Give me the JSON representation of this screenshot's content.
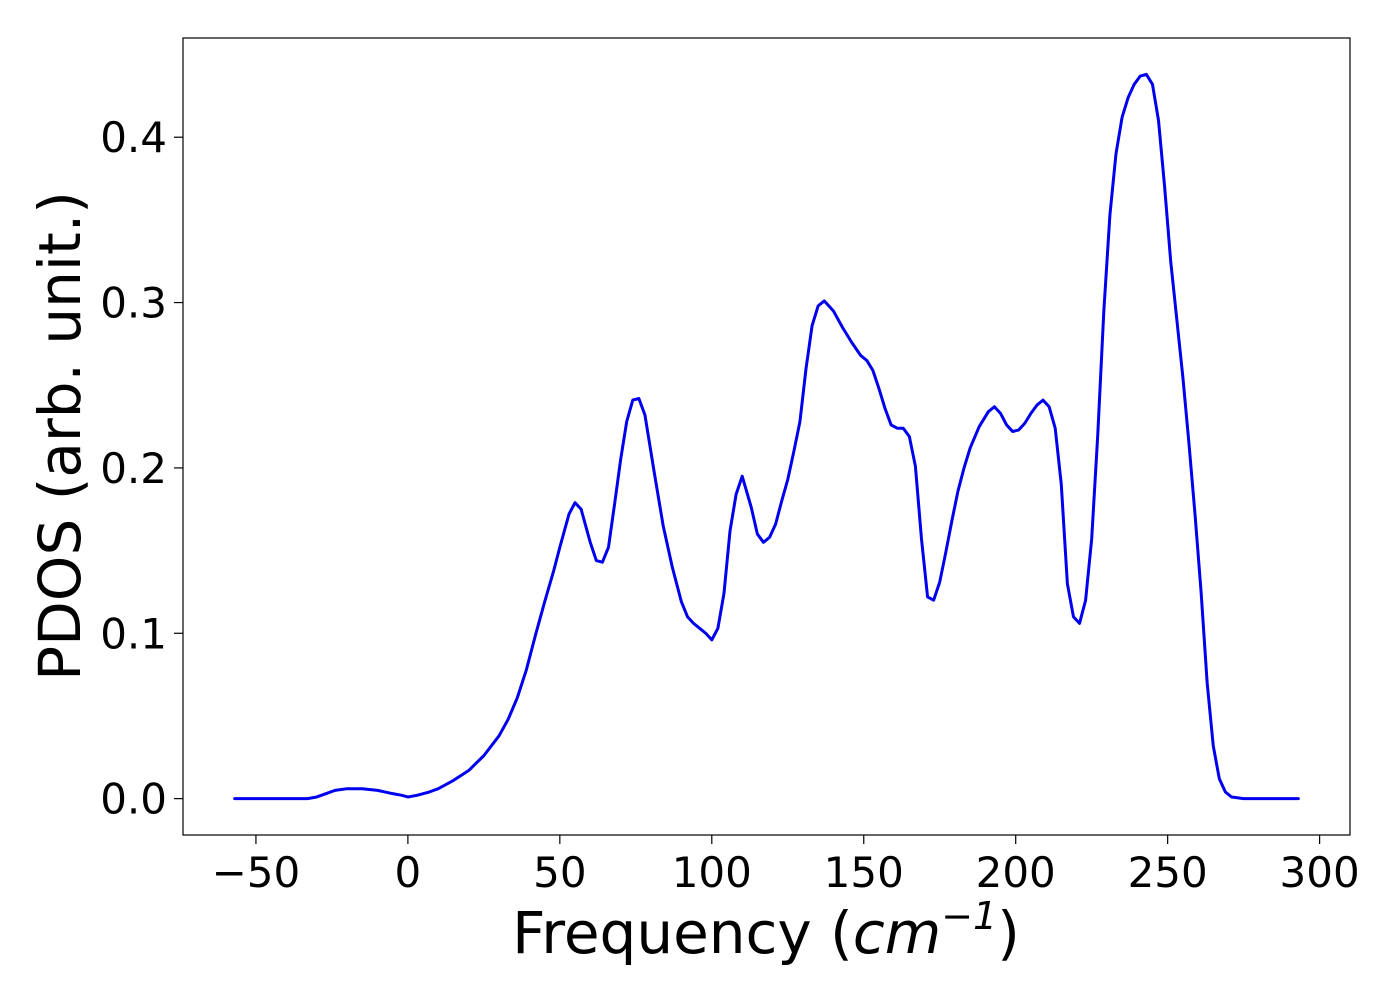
{
  "chart_data": {
    "type": "line",
    "title": "",
    "xlabel": "Frequency",
    "xlabel_unit_base": "cm",
    "xlabel_unit_exp": "−1",
    "ylabel": "PDOS (arb. unit.)",
    "xlim": [
      -74,
      310
    ],
    "ylim": [
      -0.022,
      0.46
    ],
    "x_ticks": [
      -50,
      0,
      50,
      100,
      150,
      200,
      250,
      300
    ],
    "x_tick_labels": [
      "−50",
      "0",
      "50",
      "100",
      "150",
      "200",
      "250",
      "300"
    ],
    "y_ticks": [
      0.0,
      0.1,
      0.2,
      0.3,
      0.4
    ],
    "y_tick_labels": [
      "0.0",
      "0.1",
      "0.2",
      "0.3",
      "0.4"
    ],
    "grid": false,
    "line_color": "#0000ee",
    "series": [
      {
        "x": [
          -57,
          -50,
          -40,
          -33,
          -30,
          -27,
          -24,
          -20,
          -15,
          -10,
          -5,
          -2,
          0,
          3,
          7,
          10,
          15,
          20,
          25,
          30,
          33,
          36,
          39,
          42,
          45,
          48,
          50,
          53,
          55,
          57,
          60,
          62,
          64,
          66,
          68,
          70,
          72,
          74,
          76,
          78,
          81,
          84,
          87,
          90,
          92,
          94,
          96,
          98,
          100,
          102,
          104,
          106,
          108,
          110,
          113,
          115,
          117,
          119,
          121,
          123,
          125,
          127,
          129,
          131,
          133,
          135,
          137,
          140,
          143,
          146,
          149,
          151,
          153,
          155,
          157,
          159,
          161,
          163,
          165,
          167,
          169,
          171,
          173,
          175,
          177,
          179,
          181,
          183,
          185,
          188,
          191,
          193,
          195,
          197,
          199,
          201,
          203,
          205,
          207,
          209,
          211,
          213,
          215,
          217,
          219,
          221,
          223,
          225,
          227,
          229,
          231,
          233,
          235,
          237,
          239,
          241,
          243,
          245,
          247,
          249,
          251,
          253,
          255,
          257,
          259,
          261,
          263,
          265,
          267,
          269,
          271,
          275,
          285,
          293
        ],
        "y": [
          0.0,
          0.0,
          0.0,
          0.0,
          0.001,
          0.003,
          0.005,
          0.006,
          0.006,
          0.005,
          0.003,
          0.002,
          0.001,
          0.002,
          0.004,
          0.006,
          0.011,
          0.017,
          0.026,
          0.038,
          0.048,
          0.061,
          0.078,
          0.099,
          0.119,
          0.138,
          0.152,
          0.172,
          0.179,
          0.175,
          0.155,
          0.144,
          0.143,
          0.152,
          0.178,
          0.205,
          0.228,
          0.241,
          0.242,
          0.232,
          0.198,
          0.165,
          0.14,
          0.119,
          0.11,
          0.106,
          0.103,
          0.1,
          0.096,
          0.103,
          0.124,
          0.162,
          0.184,
          0.195,
          0.176,
          0.16,
          0.155,
          0.158,
          0.166,
          0.18,
          0.193,
          0.21,
          0.228,
          0.26,
          0.286,
          0.298,
          0.301,
          0.295,
          0.285,
          0.276,
          0.268,
          0.265,
          0.259,
          0.248,
          0.236,
          0.226,
          0.224,
          0.224,
          0.219,
          0.201,
          0.157,
          0.122,
          0.12,
          0.131,
          0.149,
          0.168,
          0.186,
          0.2,
          0.212,
          0.225,
          0.234,
          0.237,
          0.233,
          0.226,
          0.222,
          0.223,
          0.227,
          0.233,
          0.238,
          0.241,
          0.237,
          0.224,
          0.19,
          0.13,
          0.11,
          0.106,
          0.12,
          0.157,
          0.22,
          0.295,
          0.353,
          0.39,
          0.412,
          0.424,
          0.432,
          0.437,
          0.438,
          0.432,
          0.41,
          0.37,
          0.325,
          0.29,
          0.255,
          0.215,
          0.172,
          0.125,
          0.07,
          0.032,
          0.012,
          0.004,
          0.001,
          0.0,
          0.0,
          0.0
        ]
      }
    ]
  }
}
